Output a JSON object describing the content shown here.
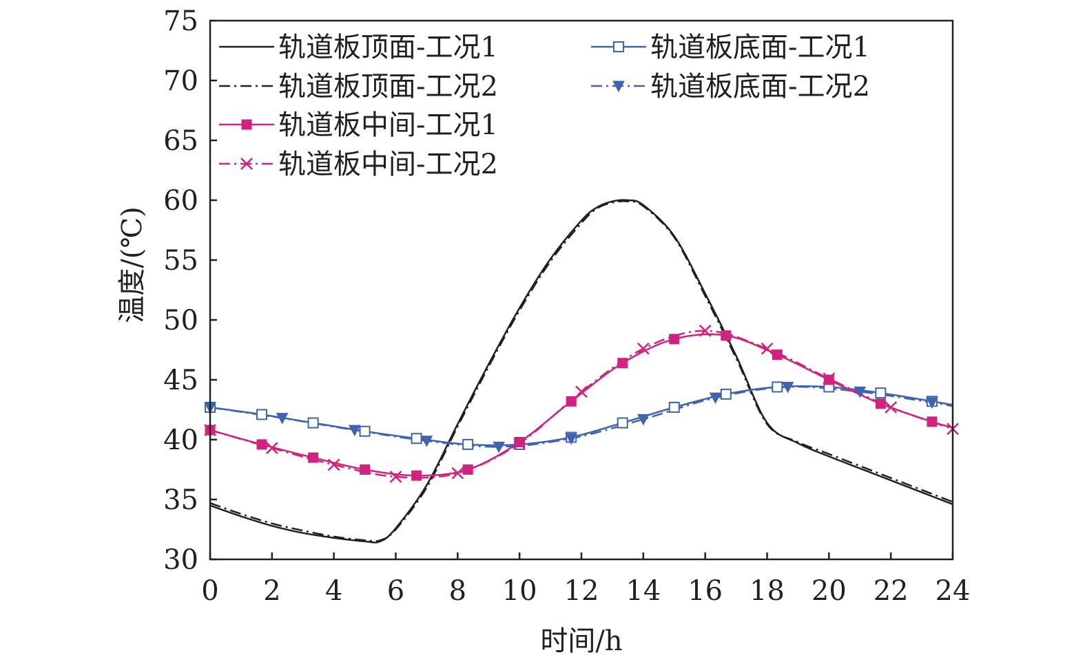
{
  "chart_data": {
    "type": "line",
    "xlabel": "时间/h",
    "ylabel": "温度/(℃)",
    "xlim": [
      0,
      24
    ],
    "ylim": [
      30,
      75
    ],
    "xticks": [
      "0",
      "2",
      "4",
      "6",
      "8",
      "10",
      "12",
      "14",
      "16",
      "18",
      "20",
      "22",
      "24"
    ],
    "yticks": [
      "30",
      "35",
      "40",
      "45",
      "50",
      "55",
      "60",
      "65",
      "70",
      "75"
    ],
    "grid": false,
    "legend_position": "top-left",
    "series": [
      {
        "name": "轨道板顶面-工况1",
        "color": "#231f20",
        "dash": "solid",
        "marker": "none",
        "x": [
          0,
          1,
          2,
          3,
          4,
          5,
          5.5,
          6,
          7,
          8,
          9,
          10,
          11,
          12,
          12.5,
          13,
          13.5,
          14,
          15,
          16,
          17,
          18,
          19,
          20,
          21,
          22,
          23,
          24
        ],
        "y": [
          34.5,
          33.6,
          32.8,
          32.2,
          31.8,
          31.5,
          31.5,
          32.6,
          36.2,
          41.3,
          46.3,
          51,
          55.1,
          58.3,
          59.4,
          59.9,
          60,
          59.6,
          57,
          52.2,
          47,
          41.4,
          39.7,
          38.6,
          37.6,
          36.6,
          35.6,
          34.6
        ]
      },
      {
        "name": "轨道板顶面-工况2",
        "color": "#231f20",
        "dash": "dashdot",
        "marker": "none",
        "x": [
          0,
          1,
          2,
          3,
          4,
          5,
          5.5,
          6,
          7,
          8,
          9,
          10,
          11,
          12,
          12.5,
          13,
          13.5,
          14,
          15,
          16,
          17,
          18,
          19,
          20,
          21,
          22,
          23,
          24
        ],
        "y": [
          34.7,
          33.8,
          33,
          32.4,
          31.9,
          31.6,
          31.6,
          32.5,
          36,
          41.1,
          46.1,
          50.8,
          54.9,
          58.1,
          59.3,
          59.8,
          59.9,
          59.5,
          56.9,
          52,
          46.8,
          41.3,
          39.8,
          38.8,
          37.8,
          36.8,
          35.8,
          34.8
        ]
      },
      {
        "name": "轨道板底面-工况1",
        "color": "#3f63ad",
        "dash": "solid",
        "marker": "square-open",
        "x": [
          0,
          1.67,
          3.33,
          5,
          6.67,
          8.33,
          10,
          11.67,
          13.33,
          15,
          16.67,
          18.33,
          20,
          21.67,
          23.33,
          24
        ],
        "y": [
          42.7,
          42.1,
          41.4,
          40.7,
          40.1,
          39.6,
          39.6,
          40.2,
          41.4,
          42.7,
          43.8,
          44.4,
          44.4,
          43.9,
          43.2,
          42.9
        ],
        "markers_x": [
          0,
          1.67,
          3.33,
          5,
          6.67,
          8.33,
          10,
          11.67,
          13.33,
          15,
          16.67,
          18.33,
          20,
          21.67,
          23.33
        ],
        "markers_y": [
          42.7,
          42.1,
          41.4,
          40.7,
          40.1,
          39.6,
          39.6,
          40.2,
          41.4,
          42.7,
          43.8,
          44.4,
          44.4,
          43.9,
          43.2
        ]
      },
      {
        "name": "轨道板底面-工况2",
        "color": "#3f63ad",
        "dash": "dashdot",
        "marker": "triangle-down",
        "x": [
          0,
          2.33,
          4.67,
          7,
          9.33,
          11.67,
          14,
          16.33,
          18.67,
          21,
          23.33,
          24
        ],
        "y": [
          42.7,
          41.8,
          40.8,
          39.9,
          39.4,
          40.1,
          41.7,
          43.5,
          44.4,
          44.0,
          43.1,
          42.8
        ],
        "markers_x": [
          0,
          2.33,
          4.67,
          7,
          9.33,
          11.67,
          14,
          16.33,
          18.67,
          21,
          23.33
        ],
        "markers_y": [
          42.7,
          41.8,
          40.8,
          39.9,
          39.4,
          40.1,
          41.7,
          43.5,
          44.4,
          44.0,
          43.1
        ]
      },
      {
        "name": "轨道板中间-工况1",
        "color": "#d1227f",
        "dash": "solid",
        "marker": "square-filled",
        "x": [
          0,
          1.67,
          3.33,
          5,
          6.67,
          8.33,
          10,
          11.67,
          13.33,
          15,
          16.67,
          18.33,
          20,
          21.67,
          23.33,
          24
        ],
        "y": [
          40.8,
          39.6,
          38.5,
          37.5,
          37,
          37.5,
          39.8,
          43.2,
          46.4,
          48.4,
          48.7,
          47.1,
          45,
          43,
          41.5,
          41
        ],
        "markers_x": [
          0,
          1.67,
          3.33,
          5,
          6.67,
          8.33,
          10,
          11.67,
          13.33,
          15,
          16.67,
          18.33,
          20,
          21.67,
          23.33
        ],
        "markers_y": [
          40.8,
          39.6,
          38.5,
          37.5,
          37,
          37.5,
          39.8,
          43.2,
          46.4,
          48.4,
          48.7,
          47.1,
          45,
          43,
          41.5
        ]
      },
      {
        "name": "轨道板中间-工况2",
        "color": "#d1227f",
        "dash": "dashdot",
        "marker": "x",
        "x": [
          0,
          2,
          4,
          6,
          8,
          10,
          12,
          14,
          16,
          18,
          20,
          22,
          24
        ],
        "y": [
          40.8,
          39.3,
          37.9,
          36.9,
          37.2,
          39.7,
          44,
          47.6,
          49.1,
          47.6,
          45.1,
          42.7,
          40.9
        ],
        "markers_x": [
          0,
          2,
          4,
          6,
          8,
          10,
          12,
          14,
          16,
          18,
          20,
          22,
          24
        ],
        "markers_y": [
          40.8,
          39.3,
          37.9,
          36.9,
          37.2,
          39.7,
          44,
          47.6,
          49.1,
          47.6,
          45.1,
          42.7,
          40.9
        ]
      }
    ]
  }
}
